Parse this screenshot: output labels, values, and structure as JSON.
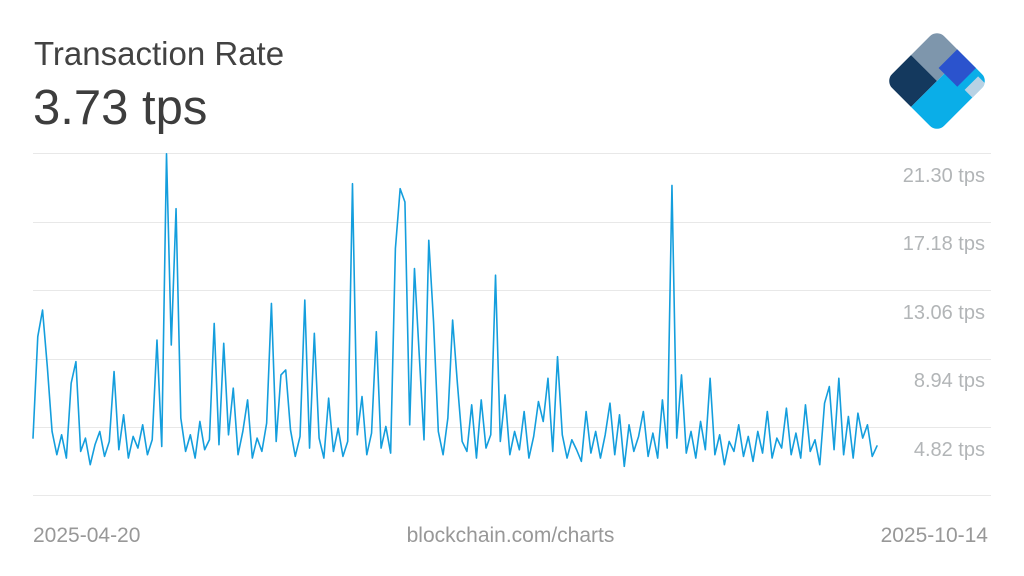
{
  "header": {
    "title": "Transaction Rate",
    "current_value": "3.73 tps"
  },
  "footer": {
    "start_date": "2025-04-20",
    "source": "blockchain.com/charts",
    "end_date": "2025-10-14"
  },
  "logo": {
    "name": "blockchain-com-diamond-logo",
    "colors": {
      "north": "#7e96ac",
      "west": "#14395e",
      "south": "#0aaee8",
      "royal": "#2b53cd",
      "light": "#b8d2e4"
    }
  },
  "colors": {
    "line": "#149edd",
    "grid": "#e8e8e8",
    "tick_text": "#b2b5b7",
    "footer_text": "#989898",
    "title_text": "#424242"
  },
  "chart_data": {
    "type": "line",
    "title": "Transaction Rate",
    "current_value_label": "3.73 tps",
    "unit": "tps",
    "x_start": "2025-04-20",
    "x_end": "2025-10-14",
    "x_interval": "daily",
    "grid": "horizontal-only",
    "legend": "none",
    "y_axis_side": "right",
    "y_ticks": [
      {
        "value": 21.3,
        "label": "21.30 tps"
      },
      {
        "value": 17.18,
        "label": "17.18 tps"
      },
      {
        "value": 13.06,
        "label": "13.06 tps"
      },
      {
        "value": 8.94,
        "label": "8.94 tps"
      },
      {
        "value": 4.82,
        "label": "4.82 tps"
      }
    ],
    "series": [
      {
        "name": "transactions-per-second",
        "color": "#149edd",
        "values": [
          4.2,
          10.3,
          11.9,
          8.5,
          4.6,
          3.2,
          4.4,
          3.0,
          7.5,
          8.8,
          3.4,
          4.2,
          2.6,
          3.8,
          4.6,
          3.1,
          4.0,
          8.2,
          3.5,
          5.6,
          3.0,
          4.3,
          3.6,
          5.0,
          3.2,
          4.1,
          10.1,
          3.7,
          21.3,
          9.8,
          18.0,
          5.4,
          3.4,
          4.4,
          3.0,
          5.2,
          3.5,
          4.1,
          11.1,
          3.8,
          9.9,
          4.4,
          7.2,
          3.2,
          4.6,
          6.5,
          3.0,
          4.2,
          3.4,
          5.1,
          12.3,
          4.0,
          8.0,
          8.3,
          4.7,
          3.1,
          4.3,
          12.5,
          3.6,
          10.5,
          4.2,
          3.0,
          6.6,
          3.4,
          4.8,
          3.1,
          4.0,
          19.5,
          4.4,
          6.7,
          3.2,
          4.5,
          10.6,
          3.6,
          4.9,
          3.3,
          15.6,
          19.2,
          18.4,
          5.0,
          14.4,
          9.2,
          4.1,
          16.1,
          11.2,
          4.6,
          3.2,
          5.4,
          11.3,
          7.5,
          4.0,
          3.4,
          6.2,
          3.0,
          6.5,
          3.6,
          4.4,
          14.0,
          4.0,
          6.8,
          3.2,
          4.6,
          3.5,
          5.8,
          3.0,
          4.3,
          6.4,
          5.2,
          7.8,
          3.4,
          9.1,
          4.4,
          3.0,
          4.1,
          3.5,
          2.8,
          5.8,
          3.3,
          4.6,
          3.0,
          4.4,
          6.3,
          3.2,
          5.6,
          2.5,
          5.0,
          3.4,
          4.3,
          5.8,
          3.1,
          4.5,
          3.0,
          6.5,
          3.6,
          19.4,
          4.2,
          8.0,
          3.3,
          4.6,
          3.0,
          5.2,
          3.5,
          7.8,
          3.2,
          4.4,
          2.6,
          4.0,
          3.4,
          5.0,
          3.1,
          4.3,
          2.8,
          4.6,
          3.3,
          5.8,
          3.0,
          4.2,
          3.6,
          6.0,
          3.2,
          4.5,
          3.0,
          6.2,
          3.4,
          4.1,
          2.6,
          6.3,
          7.3,
          3.5,
          7.8,
          3.2,
          5.5,
          3.0,
          5.7,
          4.2,
          5.0,
          3.1,
          3.73
        ]
      }
    ]
  }
}
